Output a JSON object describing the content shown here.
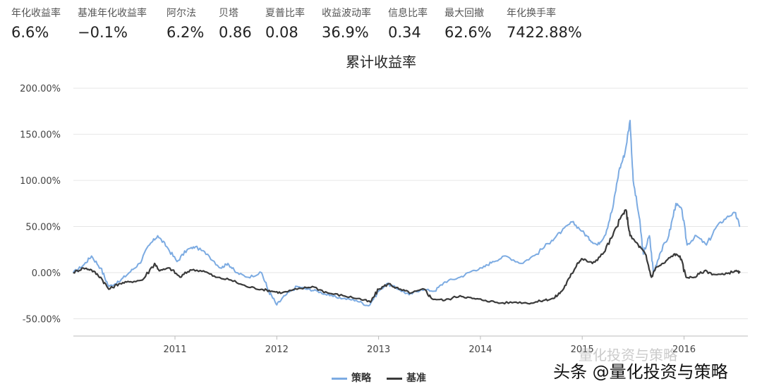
{
  "metrics": [
    {
      "label": "年化收益率",
      "value": "6.6%"
    },
    {
      "label": "基准年化收益率",
      "value": "−0.1%"
    },
    {
      "label": "阿尔法",
      "value": "6.2%"
    },
    {
      "label": "贝塔",
      "value": "0.86"
    },
    {
      "label": "夏普比率",
      "value": "0.08"
    },
    {
      "label": "收益波动率",
      "value": "36.9%"
    },
    {
      "label": "信息比率",
      "value": "0.34"
    },
    {
      "label": "最大回撤",
      "value": "62.6%"
    },
    {
      "label": "年化换手率",
      "value": "7422.88%"
    }
  ],
  "watermark": {
    "text": "头条 @量化投资与策略",
    "ghost_text": "量化投资与策略"
  },
  "chart_data": {
    "type": "line",
    "title": "累计收益率",
    "xlabel": "",
    "ylabel": "",
    "ylim": [
      -65,
      200
    ],
    "y_ticks": [
      "200.00%",
      "150.00%",
      "100.00%",
      "50.00%",
      "0.00%",
      "-50.00%"
    ],
    "x_ticks": [
      "2011",
      "2012",
      "2013",
      "2014",
      "2015",
      "2016"
    ],
    "grid": true,
    "legend_position": "bottom",
    "colors": {
      "策略": "#7cabe2",
      "基准": "#3a3a3a"
    },
    "series": [
      {
        "name": "策略",
        "color": "#7cabe2",
        "points": [
          [
            2010.0,
            0
          ],
          [
            2010.1,
            8
          ],
          [
            2010.18,
            18
          ],
          [
            2010.27,
            5
          ],
          [
            2010.35,
            -15
          ],
          [
            2010.45,
            -10
          ],
          [
            2010.55,
            0
          ],
          [
            2010.65,
            10
          ],
          [
            2010.75,
            30
          ],
          [
            2010.83,
            40
          ],
          [
            2010.92,
            28
          ],
          [
            2011.02,
            12
          ],
          [
            2011.12,
            25
          ],
          [
            2011.2,
            28
          ],
          [
            2011.32,
            20
          ],
          [
            2011.45,
            5
          ],
          [
            2011.52,
            10
          ],
          [
            2011.6,
            0
          ],
          [
            2011.72,
            -5
          ],
          [
            2011.85,
            0
          ],
          [
            2011.92,
            -20
          ],
          [
            2012.0,
            -35
          ],
          [
            2012.08,
            -25
          ],
          [
            2012.2,
            -15
          ],
          [
            2012.3,
            -18
          ],
          [
            2012.4,
            -20
          ],
          [
            2012.52,
            -25
          ],
          [
            2012.65,
            -28
          ],
          [
            2012.78,
            -30
          ],
          [
            2012.9,
            -36
          ],
          [
            2013.0,
            -20
          ],
          [
            2013.08,
            -12
          ],
          [
            2013.2,
            -18
          ],
          [
            2013.3,
            -24
          ],
          [
            2013.42,
            -18
          ],
          [
            2013.55,
            -20
          ],
          [
            2013.65,
            -10
          ],
          [
            2013.8,
            -5
          ],
          [
            2013.92,
            2
          ],
          [
            2014.02,
            5
          ],
          [
            2014.12,
            12
          ],
          [
            2014.25,
            18
          ],
          [
            2014.4,
            10
          ],
          [
            2014.55,
            20
          ],
          [
            2014.7,
            35
          ],
          [
            2014.8,
            45
          ],
          [
            2014.9,
            55
          ],
          [
            2015.0,
            45
          ],
          [
            2015.08,
            35
          ],
          [
            2015.15,
            30
          ],
          [
            2015.22,
            40
          ],
          [
            2015.3,
            70
          ],
          [
            2015.36,
            110
          ],
          [
            2015.42,
            130
          ],
          [
            2015.47,
            165
          ],
          [
            2015.5,
            100
          ],
          [
            2015.56,
            60
          ],
          [
            2015.6,
            20
          ],
          [
            2015.66,
            40
          ],
          [
            2015.7,
            0
          ],
          [
            2015.76,
            20
          ],
          [
            2015.85,
            40
          ],
          [
            2015.92,
            75
          ],
          [
            2015.98,
            68
          ],
          [
            2016.03,
            30
          ],
          [
            2016.12,
            40
          ],
          [
            2016.22,
            30
          ],
          [
            2016.32,
            50
          ],
          [
            2016.42,
            60
          ],
          [
            2016.5,
            65
          ],
          [
            2016.55,
            50
          ]
        ]
      },
      {
        "name": "基准",
        "color": "#3a3a3a",
        "points": [
          [
            2010.0,
            0
          ],
          [
            2010.1,
            5
          ],
          [
            2010.18,
            3
          ],
          [
            2010.27,
            -5
          ],
          [
            2010.35,
            -18
          ],
          [
            2010.45,
            -12
          ],
          [
            2010.55,
            -10
          ],
          [
            2010.68,
            -8
          ],
          [
            2010.8,
            10
          ],
          [
            2010.85,
            2
          ],
          [
            2010.95,
            5
          ],
          [
            2011.05,
            -5
          ],
          [
            2011.15,
            3
          ],
          [
            2011.28,
            2
          ],
          [
            2011.4,
            -5
          ],
          [
            2011.55,
            -8
          ],
          [
            2011.7,
            -15
          ],
          [
            2011.85,
            -18
          ],
          [
            2011.95,
            -20
          ],
          [
            2012.05,
            -22
          ],
          [
            2012.2,
            -18
          ],
          [
            2012.35,
            -15
          ],
          [
            2012.5,
            -22
          ],
          [
            2012.65,
            -25
          ],
          [
            2012.8,
            -28
          ],
          [
            2012.92,
            -32
          ],
          [
            2013.0,
            -18
          ],
          [
            2013.1,
            -12
          ],
          [
            2013.2,
            -18
          ],
          [
            2013.32,
            -22
          ],
          [
            2013.45,
            -18
          ],
          [
            2013.52,
            -28
          ],
          [
            2013.65,
            -30
          ],
          [
            2013.8,
            -25
          ],
          [
            2013.92,
            -28
          ],
          [
            2014.05,
            -30
          ],
          [
            2014.2,
            -33
          ],
          [
            2014.35,
            -32
          ],
          [
            2014.5,
            -33
          ],
          [
            2014.62,
            -30
          ],
          [
            2014.72,
            -28
          ],
          [
            2014.8,
            -20
          ],
          [
            2014.88,
            -5
          ],
          [
            2014.95,
            10
          ],
          [
            2015.0,
            15
          ],
          [
            2015.1,
            10
          ],
          [
            2015.2,
            20
          ],
          [
            2015.3,
            40
          ],
          [
            2015.38,
            60
          ],
          [
            2015.43,
            68
          ],
          [
            2015.47,
            40
          ],
          [
            2015.55,
            30
          ],
          [
            2015.62,
            20
          ],
          [
            2015.68,
            -5
          ],
          [
            2015.72,
            5
          ],
          [
            2015.8,
            10
          ],
          [
            2015.9,
            20
          ],
          [
            2015.96,
            18
          ],
          [
            2016.02,
            -5
          ],
          [
            2016.1,
            -5
          ],
          [
            2016.2,
            2
          ],
          [
            2016.3,
            -2
          ],
          [
            2016.4,
            -2
          ],
          [
            2016.5,
            2
          ],
          [
            2016.55,
            0
          ]
        ]
      }
    ]
  }
}
